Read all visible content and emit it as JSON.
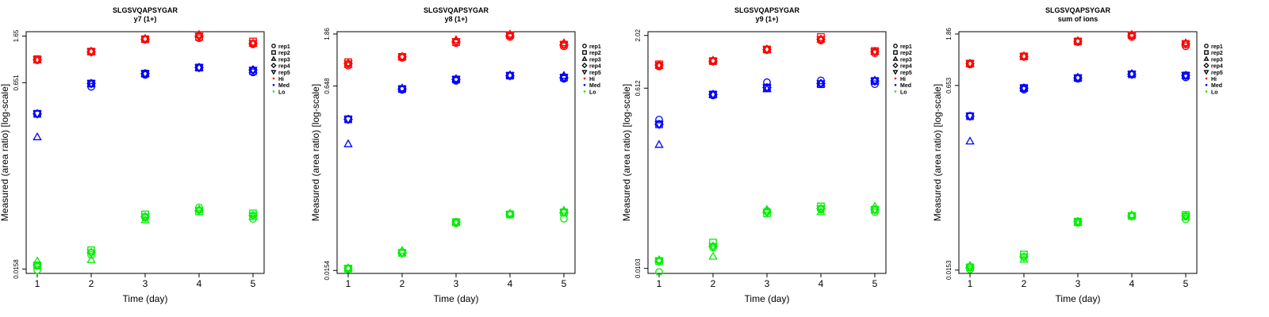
{
  "colors": {
    "Hi": "#ff0000",
    "Med": "#0000ff",
    "Lo": "#00ee00"
  },
  "legend": {
    "reps": [
      {
        "label": "rep1",
        "shape": "circle"
      },
      {
        "label": "rep2",
        "shape": "square"
      },
      {
        "label": "rep3",
        "shape": "triangle"
      },
      {
        "label": "rep4",
        "shape": "diamond"
      },
      {
        "label": "rep5",
        "shape": "triangle-down"
      }
    ],
    "levels": [
      {
        "label": "Hi",
        "color": "#ff0000"
      },
      {
        "label": "Med",
        "color": "#0000ff"
      },
      {
        "label": "Lo",
        "color": "#00ee00"
      }
    ]
  },
  "chart_data": [
    {
      "type": "scatter",
      "title": "SLGSVQAPSYGAR",
      "subtitle": "y7 (1+)",
      "xlabel": "Time (day)",
      "ylabel": "Measured (area ratio) [log-scale]",
      "x_ticks": [
        "1",
        "2",
        "3",
        "4",
        "5"
      ],
      "y_ticks": [
        0.0158,
        0.651,
        1.65
      ],
      "y_tick_labels": [
        "0.0158",
        "0.651",
        "1.65"
      ],
      "yscale": "log",
      "ylim": [
        0.0145,
        1.8
      ],
      "x": [
        1,
        2,
        3,
        4,
        5
      ],
      "series": [
        {
          "level": "Hi",
          "values": [
            [
              1.02,
              1.04,
              1.02,
              1.03,
              1.03
            ],
            [
              1.2,
              1.21,
              1.22,
              1.2,
              1.21
            ],
            [
              1.54,
              1.55,
              1.57,
              1.55,
              1.55
            ],
            [
              1.58,
              1.62,
              1.7,
              1.65,
              1.66
            ],
            [
              1.4,
              1.48,
              1.42,
              1.42,
              1.43
            ]
          ]
        },
        {
          "level": "Med",
          "values": [
            [
              0.35,
              0.35,
              0.22,
              0.35,
              0.35
            ],
            [
              0.6,
              0.64,
              0.64,
              0.64,
              0.64
            ],
            [
              0.76,
              0.78,
              0.78,
              0.78,
              0.78
            ],
            [
              0.88,
              0.88,
              0.88,
              0.88,
              0.88
            ],
            [
              0.8,
              0.82,
              0.84,
              0.84,
              0.84
            ]
          ]
        },
        {
          "level": "Lo",
          "values": [
            [
              0.0155,
              0.017,
              0.0185,
              0.017,
              0.017
            ],
            [
              0.021,
              0.023,
              0.019,
              0.022,
              0.022
            ],
            [
              0.044,
              0.047,
              0.042,
              0.045,
              0.045
            ],
            [
              0.054,
              0.05,
              0.052,
              0.051,
              0.051
            ],
            [
              0.043,
              0.048,
              0.045,
              0.046,
              0.046
            ]
          ]
        }
      ]
    },
    {
      "type": "scatter",
      "title": "SLGSVQAPSYGAR",
      "subtitle": "y8 (1+)",
      "xlabel": "Time (day)",
      "ylabel": "Measured (area ratio) [log-scale]",
      "x_ticks": [
        "1",
        "2",
        "3",
        "4",
        "5"
      ],
      "y_ticks": [
        0.0154,
        0.648,
        1.86
      ],
      "y_tick_labels": [
        "0.0154",
        "0.648",
        "1.86"
      ],
      "yscale": "log",
      "ylim": [
        0.0145,
        1.95
      ],
      "x": [
        1,
        2,
        3,
        4,
        5
      ],
      "series": [
        {
          "level": "Hi",
          "values": [
            [
              0.98,
              1.05,
              1.0,
              1.02,
              1.02
            ],
            [
              1.15,
              1.17,
              1.18,
              1.17,
              1.17
            ],
            [
              1.55,
              1.58,
              1.65,
              1.6,
              1.6
            ],
            [
              1.75,
              1.82,
              1.85,
              1.8,
              1.8
            ],
            [
              1.45,
              1.5,
              1.55,
              1.5,
              1.5
            ]
          ]
        },
        {
          "level": "Med",
          "values": [
            [
              0.33,
              0.33,
              0.2,
              0.33,
              0.33
            ],
            [
              0.6,
              0.61,
              0.62,
              0.61,
              0.61
            ],
            [
              0.72,
              0.74,
              0.75,
              0.74,
              0.74
            ],
            [
              0.8,
              0.8,
              0.81,
              0.8,
              0.8
            ],
            [
              0.75,
              0.77,
              0.8,
              0.77,
              0.77
            ]
          ]
        },
        {
          "level": "Lo",
          "values": [
            [
              0.0158,
              0.016,
              0.0162,
              0.016,
              0.016
            ],
            [
              0.022,
              0.022,
              0.023,
              0.022,
              0.022
            ],
            [
              0.04,
              0.041,
              0.041,
              0.041,
              0.041
            ],
            [
              0.048,
              0.048,
              0.049,
              0.048,
              0.048
            ],
            [
              0.044,
              0.05,
              0.052,
              0.05,
              0.05
            ]
          ]
        }
      ]
    },
    {
      "type": "scatter",
      "title": "SLGSVQAPSYGAR",
      "subtitle": "y9 (1+)",
      "xlabel": "Time (day)",
      "ylabel": "Measured (area ratio) [log-scale]",
      "x_ticks": [
        "1",
        "2",
        "3",
        "4",
        "5"
      ],
      "y_ticks": [
        0.0103,
        0.612,
        2.02
      ],
      "y_tick_labels": [
        "0.0103",
        "0.612",
        "2.02"
      ],
      "yscale": "log",
      "ylim": [
        0.0092,
        2.2
      ],
      "x": [
        1,
        2,
        3,
        4,
        5
      ],
      "series": [
        {
          "level": "Hi",
          "values": [
            [
              1.0,
              1.05,
              1.02,
              1.03,
              1.03
            ],
            [
              1.12,
              1.13,
              1.15,
              1.13,
              1.13
            ],
            [
              1.45,
              1.47,
              1.48,
              1.47,
              1.47
            ],
            [
              1.8,
              1.95,
              1.85,
              1.85,
              1.85
            ],
            [
              1.35,
              1.42,
              1.4,
              1.4,
              1.4
            ]
          ]
        },
        {
          "level": "Med",
          "values": [
            [
              0.3,
              0.27,
              0.17,
              0.27,
              0.27
            ],
            [
              0.52,
              0.53,
              0.53,
              0.53,
              0.53
            ],
            [
              0.7,
              0.62,
              0.6,
              0.62,
              0.62
            ],
            [
              0.73,
              0.67,
              0.68,
              0.68,
              0.68
            ],
            [
              0.67,
              0.72,
              0.73,
              0.72,
              0.72
            ]
          ]
        },
        {
          "level": "Lo",
          "values": [
            [
              0.0095,
              0.0122,
              0.0125,
              0.0122,
              0.0122
            ],
            [
              0.0165,
              0.0185,
              0.0135,
              0.017,
              0.017
            ],
            [
              0.038,
              0.036,
              0.039,
              0.037,
              0.037
            ],
            [
              0.039,
              0.042,
              0.037,
              0.04,
              0.04
            ],
            [
              0.037,
              0.039,
              0.042,
              0.039,
              0.039
            ]
          ]
        }
      ]
    },
    {
      "type": "scatter",
      "title": "SLGSVQAPSYGAR",
      "subtitle": "sum of ions",
      "xlabel": "Time (day)",
      "ylabel": "Measured (area ratio) [log-scale]",
      "x_ticks": [
        "1",
        "2",
        "3",
        "4",
        "5"
      ],
      "y_ticks": [
        0.0153,
        0.653,
        1.86
      ],
      "y_tick_labels": [
        "0.0153",
        "0.653",
        "1.86"
      ],
      "yscale": "log",
      "ylim": [
        0.0143,
        1.95
      ],
      "x": [
        1,
        2,
        3,
        4,
        5
      ],
      "series": [
        {
          "level": "Hi",
          "values": [
            [
              1.0,
              1.02,
              1.02,
              1.02,
              1.02
            ],
            [
              1.17,
              1.18,
              1.19,
              1.18,
              1.18
            ],
            [
              1.58,
              1.6,
              1.62,
              1.6,
              1.6
            ],
            [
              1.75,
              1.82,
              1.84,
              1.8,
              1.8
            ],
            [
              1.45,
              1.52,
              1.55,
              1.52,
              1.52
            ]
          ]
        },
        {
          "level": "Med",
          "values": [
            [
              0.35,
              0.35,
              0.21,
              0.35,
              0.35
            ],
            [
              0.6,
              0.62,
              0.62,
              0.62,
              0.62
            ],
            [
              0.75,
              0.76,
              0.77,
              0.76,
              0.76
            ],
            [
              0.82,
              0.82,
              0.83,
              0.82,
              0.82
            ],
            [
              0.77,
              0.8,
              0.8,
              0.8,
              0.8
            ]
          ]
        },
        {
          "level": "Lo",
          "values": [
            [
              0.0155,
              0.0162,
              0.0168,
              0.0162,
              0.0162
            ],
            [
              0.02,
              0.021,
              0.019,
              0.02,
              0.02
            ],
            [
              0.04,
              0.041,
              0.04,
              0.041,
              0.041
            ],
            [
              0.046,
              0.046,
              0.047,
              0.046,
              0.046
            ],
            [
              0.043,
              0.047,
              0.045,
              0.046,
              0.046
            ]
          ]
        }
      ]
    }
  ]
}
